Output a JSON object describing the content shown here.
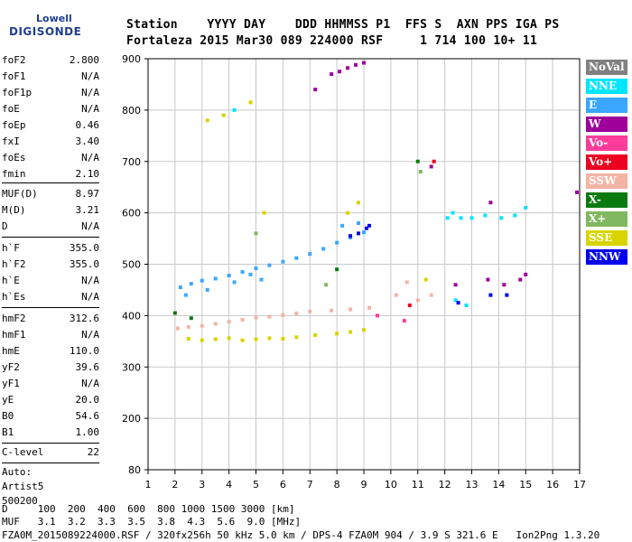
{
  "logo": {
    "top": "Lowell",
    "main": "DIGISONDE"
  },
  "header": {
    "line1": "Station    YYYY DAY    DDD HHMMSS P1  FFS S  AXN PPS IGA PS",
    "line2": "Fortaleza 2015 Mar30 089 224000 RSF     1 714 100 10+ 11"
  },
  "params": {
    "group1": [
      {
        "label": "foF2",
        "value": "2.800"
      },
      {
        "label": "foF1",
        "value": "N/A"
      },
      {
        "label": "foF1p",
        "value": "N/A"
      },
      {
        "label": "foE",
        "value": "N/A"
      },
      {
        "label": "foEp",
        "value": "0.46"
      },
      {
        "label": "fxI",
        "value": "3.40"
      },
      {
        "label": "foEs",
        "value": "N/A"
      },
      {
        "label": "fmin",
        "value": "2.10"
      }
    ],
    "group2": [
      {
        "label": "MUF(D)",
        "value": "8.97"
      },
      {
        "label": "M(D)",
        "value": "3.21"
      },
      {
        "label": "D",
        "value": "N/A"
      }
    ],
    "group3": [
      {
        "label": "h`F",
        "value": "355.0"
      },
      {
        "label": "h`F2",
        "value": "355.0"
      },
      {
        "label": "h`E",
        "value": "N/A"
      },
      {
        "label": "h`Es",
        "value": "N/A"
      }
    ],
    "group4": [
      {
        "label": "hmF2",
        "value": "312.6"
      },
      {
        "label": "hmF1",
        "value": "N/A"
      },
      {
        "label": "hmE",
        "value": "110.0"
      },
      {
        "label": "yF2",
        "value": "39.6"
      },
      {
        "label": "yF1",
        "value": "N/A"
      },
      {
        "label": "yE",
        "value": "20.0"
      },
      {
        "label": "B0",
        "value": "54.6"
      },
      {
        "label": "B1",
        "value": "1.00"
      }
    ],
    "group5": [
      {
        "label": "C-level",
        "value": "22"
      }
    ]
  },
  "auto": [
    "Auto:",
    "Artist5",
    "500200"
  ],
  "bottom": {
    "d_line": "D     100  200  400  600  800 1000 1500 3000 [km]",
    "muf_line": "MUF   3.1  3.2  3.3  3.5  3.8  4.3  5.6  9.0 [MHz]",
    "footer": "FZA0M_2015089224000.RSF / 320fx256h 50 kHz 5.0 km / DPS-4 FZA0M 904 / 3.9 S 321.6 E   Ion2Png 1.3.20"
  },
  "legend": [
    {
      "label": "NoVal",
      "color": "#808080"
    },
    {
      "label": "NNE",
      "color": "#00e5ff"
    },
    {
      "label": "E",
      "color": "#3aa6ff"
    },
    {
      "label": "W",
      "color": "#a0009a"
    },
    {
      "label": "Vo-",
      "color": "#ff3c9a"
    },
    {
      "label": "Vo+",
      "color": "#ee0020"
    },
    {
      "label": "SSW",
      "color": "#f4b4a4"
    },
    {
      "label": "X-",
      "color": "#0a7a10"
    },
    {
      "label": "X+",
      "color": "#80b860"
    },
    {
      "label": "SSE",
      "color": "#d8d400"
    },
    {
      "label": "NNW",
      "color": "#0000ee"
    }
  ],
  "chart_data": {
    "type": "scatter",
    "xlim": [
      1,
      17
    ],
    "ylim": [
      80,
      900
    ],
    "x_ticks": [
      1,
      2,
      3,
      4,
      5,
      6,
      7,
      8,
      9,
      10,
      11,
      12,
      13,
      14,
      15,
      16,
      17
    ],
    "y_ticks": [
      80,
      200,
      300,
      400,
      500,
      600,
      700,
      800,
      900
    ],
    "grid": true,
    "legend_position": "right",
    "series": [
      {
        "name": "E",
        "points": [
          [
            2.2,
            455
          ],
          [
            2.6,
            462
          ],
          [
            3.0,
            468
          ],
          [
            3.5,
            472
          ],
          [
            4.0,
            478
          ],
          [
            4.5,
            485
          ],
          [
            5.0,
            492
          ],
          [
            5.5,
            498
          ],
          [
            6.0,
            505
          ],
          [
            6.5,
            512
          ],
          [
            7.0,
            520
          ],
          [
            7.5,
            530
          ],
          [
            8.0,
            542
          ],
          [
            8.5,
            552
          ],
          [
            9.0,
            562
          ],
          [
            2.4,
            440
          ],
          [
            3.2,
            450
          ],
          [
            4.2,
            465
          ],
          [
            5.2,
            470
          ],
          [
            4.8,
            480
          ],
          [
            8.2,
            575
          ],
          [
            8.8,
            580
          ]
        ]
      },
      {
        "name": "SSW",
        "points": [
          [
            2.1,
            375
          ],
          [
            2.5,
            378
          ],
          [
            3.0,
            380
          ],
          [
            3.5,
            384
          ],
          [
            4.0,
            388
          ],
          [
            4.5,
            392
          ],
          [
            5.0,
            396
          ],
          [
            5.5,
            398
          ],
          [
            6.0,
            401
          ],
          [
            6.5,
            404
          ],
          [
            7.0,
            408
          ],
          [
            7.8,
            410
          ],
          [
            8.5,
            412
          ],
          [
            9.2,
            415
          ],
          [
            10.2,
            440
          ],
          [
            10.6,
            465
          ],
          [
            11.0,
            430
          ],
          [
            11.5,
            440
          ]
        ]
      },
      {
        "name": "SSE",
        "points": [
          [
            2.5,
            355
          ],
          [
            3.0,
            352
          ],
          [
            3.5,
            354
          ],
          [
            4.0,
            356
          ],
          [
            4.5,
            352
          ],
          [
            5.0,
            354
          ],
          [
            5.5,
            356
          ],
          [
            6.0,
            355
          ],
          [
            6.5,
            358
          ],
          [
            7.2,
            362
          ],
          [
            8.0,
            365
          ],
          [
            8.5,
            368
          ],
          [
            9.0,
            372
          ],
          [
            3.2,
            780
          ],
          [
            3.8,
            790
          ],
          [
            4.8,
            815
          ],
          [
            5.3,
            600
          ],
          [
            8.4,
            600
          ],
          [
            8.8,
            620
          ],
          [
            11.3,
            470
          ]
        ]
      },
      {
        "name": "W",
        "points": [
          [
            7.8,
            870
          ],
          [
            8.1,
            875
          ],
          [
            8.4,
            882
          ],
          [
            8.7,
            888
          ],
          [
            9.0,
            892
          ],
          [
            7.2,
            840
          ],
          [
            12.4,
            460
          ],
          [
            13.6,
            470
          ],
          [
            14.2,
            460
          ],
          [
            14.8,
            470
          ],
          [
            15.0,
            480
          ],
          [
            11.5,
            690
          ],
          [
            13.7,
            620
          ],
          [
            16.9,
            640
          ]
        ]
      },
      {
        "name": "NNE",
        "points": [
          [
            12.1,
            590
          ],
          [
            12.3,
            600
          ],
          [
            12.6,
            590
          ],
          [
            13.0,
            590
          ],
          [
            13.5,
            595
          ],
          [
            14.1,
            590
          ],
          [
            14.6,
            595
          ],
          [
            15.0,
            610
          ],
          [
            4.2,
            800
          ],
          [
            12.4,
            430
          ],
          [
            12.8,
            420
          ]
        ]
      },
      {
        "name": "NNW",
        "points": [
          [
            8.5,
            555
          ],
          [
            8.8,
            560
          ],
          [
            9.1,
            570
          ],
          [
            9.2,
            575
          ],
          [
            12.5,
            425
          ],
          [
            13.7,
            440
          ],
          [
            14.3,
            440
          ]
        ]
      },
      {
        "name": "X-",
        "points": [
          [
            2.0,
            405
          ],
          [
            2.6,
            395
          ],
          [
            11.0,
            700
          ],
          [
            8.0,
            490
          ]
        ]
      },
      {
        "name": "X+",
        "points": [
          [
            11.1,
            680
          ],
          [
            5.0,
            560
          ],
          [
            7.6,
            460
          ]
        ]
      },
      {
        "name": "Vo-",
        "points": [
          [
            9.5,
            400
          ],
          [
            10.5,
            390
          ]
        ]
      },
      {
        "name": "Vo+",
        "points": [
          [
            11.6,
            700
          ],
          [
            10.7,
            420
          ]
        ]
      }
    ]
  }
}
